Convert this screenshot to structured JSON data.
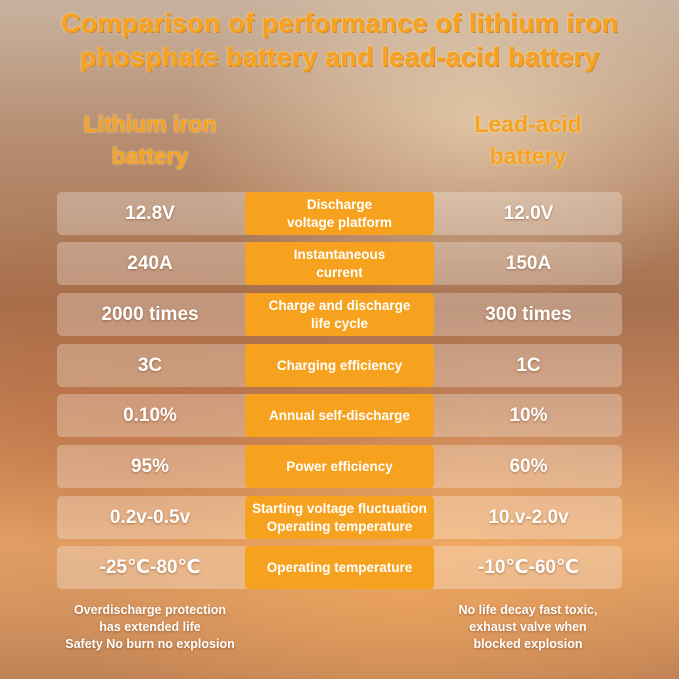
{
  "title": "Comparison of performance of lithium iron\nphosphate battery and lead-acid battery",
  "columns": {
    "left": "Lithium iron\nbattery",
    "right": "Lead-acid\nbattery"
  },
  "rows": [
    {
      "left": "12.8V",
      "metric": "Discharge\nvoltage platform",
      "right": "12.0V"
    },
    {
      "left": "240A",
      "metric": "Instantaneous\ncurrent",
      "right": "150A"
    },
    {
      "left": "2000 times",
      "metric": "Charge and discharge\nlife cycle",
      "right": "300 times"
    },
    {
      "left": "3C",
      "metric": "Charging efficiency",
      "right": "1C"
    },
    {
      "left": "0.10%",
      "metric": "Annual self-discharge",
      "right": "10%"
    },
    {
      "left": "95%",
      "metric": "Power efficiency",
      "right": "60%"
    },
    {
      "left": "0.2v-0.5v",
      "metric": "Starting voltage fluctuation\nOperating temperature",
      "right": "10.v-2.0v"
    },
    {
      "left": "-25℃-80℃",
      "metric": "Operating temperature",
      "right": "-10℃-60℃"
    }
  ],
  "notes": {
    "left": "Overdischarge protection\nhas extended life\nSafety No burn no explosion",
    "right": "No life decay fast toxic,\nexhaust valve when\nblocked explosion"
  },
  "colors": {
    "accent": "#f7a21f",
    "text": "#ffffff"
  }
}
